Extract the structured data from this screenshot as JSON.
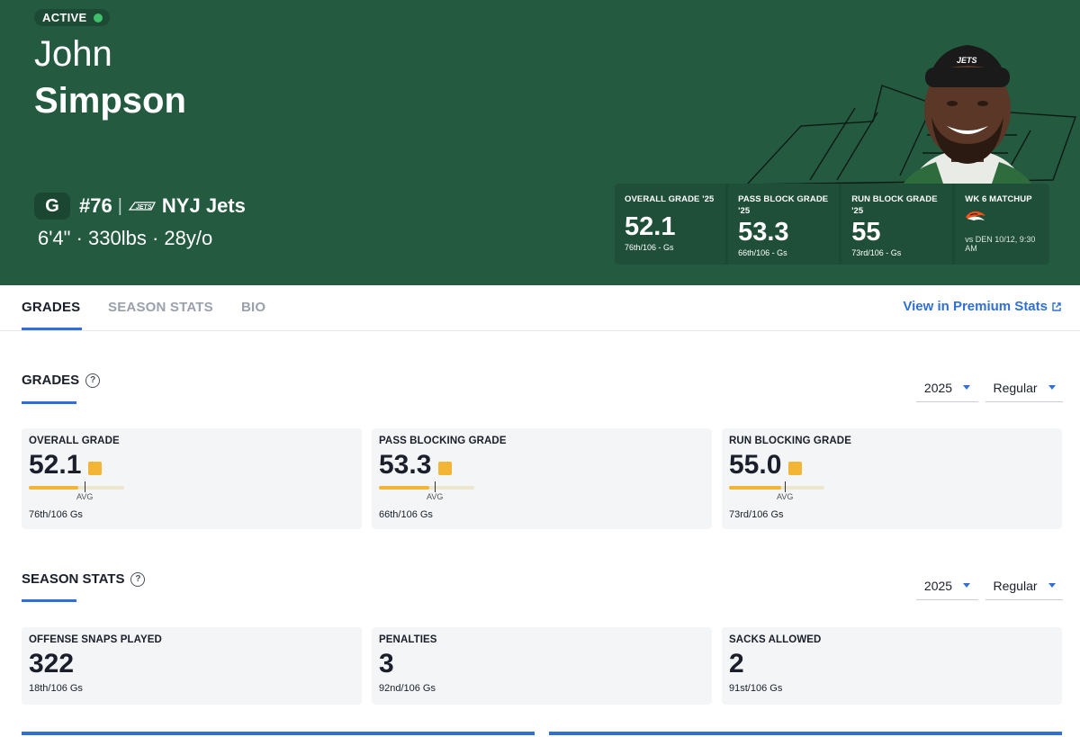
{
  "player": {
    "status": "ACTIVE",
    "first_name": "John",
    "last_name": "Simpson",
    "position": "G",
    "number": "#76",
    "separator": "|",
    "team": "NYJ Jets",
    "physical": "6'4\" · 330lbs · 28y/o"
  },
  "hero_stats": [
    {
      "label": "OVERALL GRADE '25",
      "value": "52.1",
      "rank": "76th/106 - Gs"
    },
    {
      "label": "PASS BLOCK GRADE '25",
      "value": "53.3",
      "rank": "66th/106 - Gs"
    },
    {
      "label": "RUN BLOCK GRADE '25",
      "value": "55",
      "rank": "73rd/106 - Gs"
    }
  ],
  "matchup": {
    "label": "WK 6 MATCHUP",
    "text": "vs DEN 10/12, 9:30 AM",
    "opponent_icon": "broncos-logo"
  },
  "tabs": [
    {
      "label": "GRADES",
      "active": true
    },
    {
      "label": "SEASON STATS",
      "active": false
    },
    {
      "label": "BIO",
      "active": false
    }
  ],
  "premium_link": "View in Premium Stats",
  "grades": {
    "title": "GRADES",
    "help": "?",
    "year": "2025",
    "season_type": "Regular",
    "avg_label": "AVG",
    "cards": [
      {
        "label": "OVERALL GRADE",
        "value": "52.1",
        "rank": "76th/106 Gs",
        "fill": 0.521
      },
      {
        "label": "PASS BLOCKING GRADE",
        "value": "53.3",
        "rank": "66th/106 Gs",
        "fill": 0.533
      },
      {
        "label": "RUN BLOCKING GRADE",
        "value": "55.0",
        "rank": "73rd/106 Gs",
        "fill": 0.55
      }
    ],
    "grade_color": "#f2b535"
  },
  "season_stats": {
    "title": "SEASON STATS",
    "help": "?",
    "year": "2025",
    "season_type": "Regular",
    "cards": [
      {
        "label": "OFFENSE SNAPS PLAYED",
        "value": "322",
        "rank": "18th/106 Gs"
      },
      {
        "label": "PENALTIES",
        "value": "3",
        "rank": "92nd/106 Gs"
      },
      {
        "label": "SACKS ALLOWED",
        "value": "2",
        "rank": "91st/106 Gs"
      }
    ]
  },
  "colors": {
    "hero_green": "#245a40",
    "accent_blue": "#2f6fd6",
    "status_green": "#3fbf6a"
  }
}
